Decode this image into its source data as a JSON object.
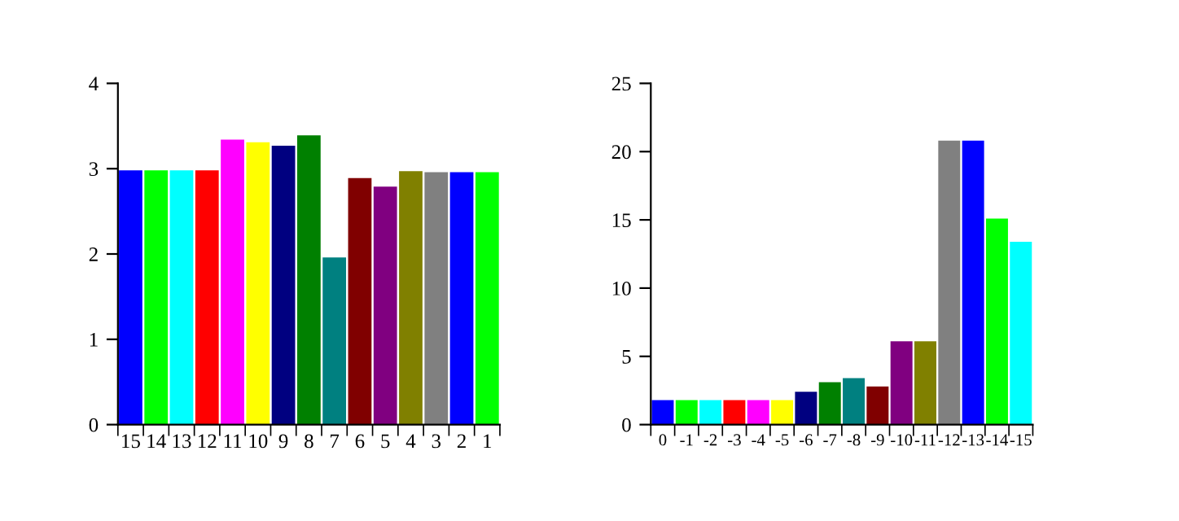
{
  "chart_data": [
    {
      "type": "bar",
      "categories": [
        "15",
        "14",
        "13",
        "12",
        "11",
        "10",
        "9",
        "8",
        "7",
        "6",
        "5",
        "4",
        "3",
        "2",
        "1"
      ],
      "values": [
        2.98,
        2.98,
        2.98,
        2.98,
        3.34,
        3.31,
        3.27,
        3.39,
        1.96,
        2.89,
        2.79,
        2.97,
        2.96,
        2.96,
        2.96
      ],
      "colors": [
        "#0000ff",
        "#00ff00",
        "#00ffff",
        "#ff0000",
        "#ff00ff",
        "#ffff00",
        "#000080",
        "#008000",
        "#008080",
        "#800000",
        "#800080",
        "#808000",
        "#808080",
        "#0000ff",
        "#00ff00"
      ],
      "ylim": [
        0,
        4
      ],
      "yticks": [
        0,
        1,
        2,
        3,
        4
      ],
      "grid": false
    },
    {
      "type": "bar",
      "categories": [
        "0",
        "-1",
        "-2",
        "-3",
        "-4",
        "-5",
        "-6",
        "-7",
        "-8",
        "-9",
        "-10",
        "-11",
        "-12",
        "-13",
        "-14",
        "-15"
      ],
      "values": [
        1.8,
        1.8,
        1.8,
        1.8,
        1.8,
        1.8,
        2.4,
        3.1,
        3.4,
        2.8,
        6.1,
        6.1,
        20.8,
        20.8,
        15.1,
        13.4
      ],
      "colors": [
        "#0000ff",
        "#00ff00",
        "#00ffff",
        "#ff0000",
        "#ff00ff",
        "#ffff00",
        "#000080",
        "#008000",
        "#008080",
        "#800000",
        "#800080",
        "#808000",
        "#808080",
        "#0000ff",
        "#00ff00",
        "#00ffff"
      ],
      "ylim": [
        0,
        25
      ],
      "yticks": [
        0,
        5,
        10,
        15,
        20,
        25
      ],
      "grid": false
    }
  ]
}
